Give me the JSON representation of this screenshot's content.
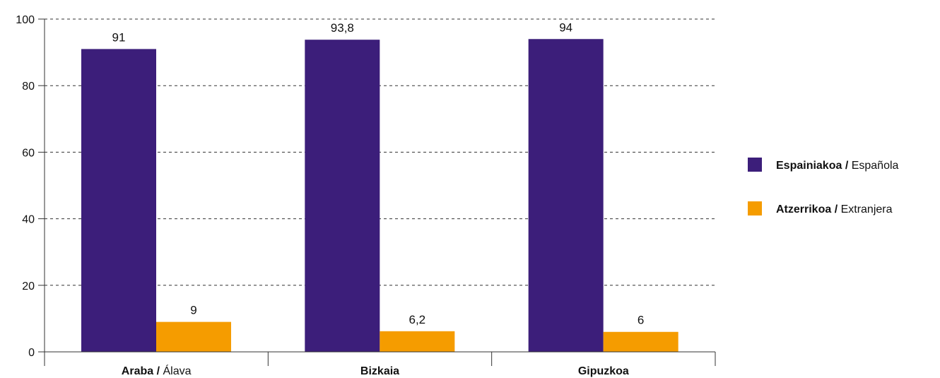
{
  "chart_data": {
    "type": "bar",
    "categories": [
      {
        "bold": "Araba /",
        "normal": "Álava"
      },
      {
        "bold": "Bizkaia",
        "normal": ""
      },
      {
        "bold": "Gipuzkoa",
        "normal": ""
      }
    ],
    "series": [
      {
        "name_bold": "Espainiakoa /",
        "name_normal": "Española",
        "color": "#3c1e7a",
        "values": [
          91,
          93.8,
          94
        ],
        "labels": [
          "91",
          "93,8",
          "94"
        ]
      },
      {
        "name_bold": "Atzerrikoa /",
        "name_normal": "Extranjera",
        "color": "#f59c00",
        "values": [
          9,
          6.2,
          6
        ],
        "labels": [
          "9",
          "6,2",
          "6"
        ]
      }
    ],
    "ylim": [
      0,
      100
    ],
    "yticks": [
      0,
      20,
      40,
      60,
      80,
      100
    ],
    "grid": true,
    "legend_position": "right"
  }
}
